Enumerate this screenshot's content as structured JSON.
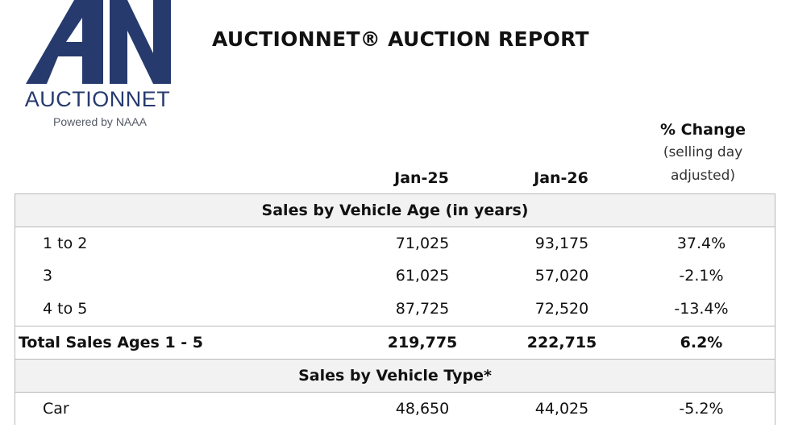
{
  "logo": {
    "mark_name": "auctionnet-an-logo-mark",
    "wordmark": "AUCTIONNET",
    "tagline": "Powered by NAAA",
    "brand_color": "#263a6e"
  },
  "report_title": "AUCTIONNET® AUCTION REPORT",
  "columns": {
    "jan25": "Jan-25",
    "jan26": "Jan-26",
    "pct_title": "% Change",
    "pct_sub1": "(selling day",
    "pct_sub2": "adjusted)"
  },
  "sections": [
    {
      "title": "Sales by Vehicle Age (in years)",
      "rows": [
        {
          "label": "1 to 2",
          "jan25": "71,025",
          "jan26": "93,175",
          "pct": "37.4%"
        },
        {
          "label": "3",
          "jan25": "61,025",
          "jan26": "57,020",
          "pct": "-2.1%"
        },
        {
          "label": "4 to 5",
          "jan25": "87,725",
          "jan26": "72,520",
          "pct": "-13.4%"
        }
      ],
      "total": {
        "label": "Total Sales Ages 1 - 5",
        "jan25": "219,775",
        "jan26": "222,715",
        "pct": "6.2%"
      }
    },
    {
      "title": "Sales by Vehicle Type*",
      "rows": [
        {
          "label": "Car",
          "jan25": "48,650",
          "jan26": "44,025",
          "pct": "-5.2%"
        }
      ]
    }
  ]
}
